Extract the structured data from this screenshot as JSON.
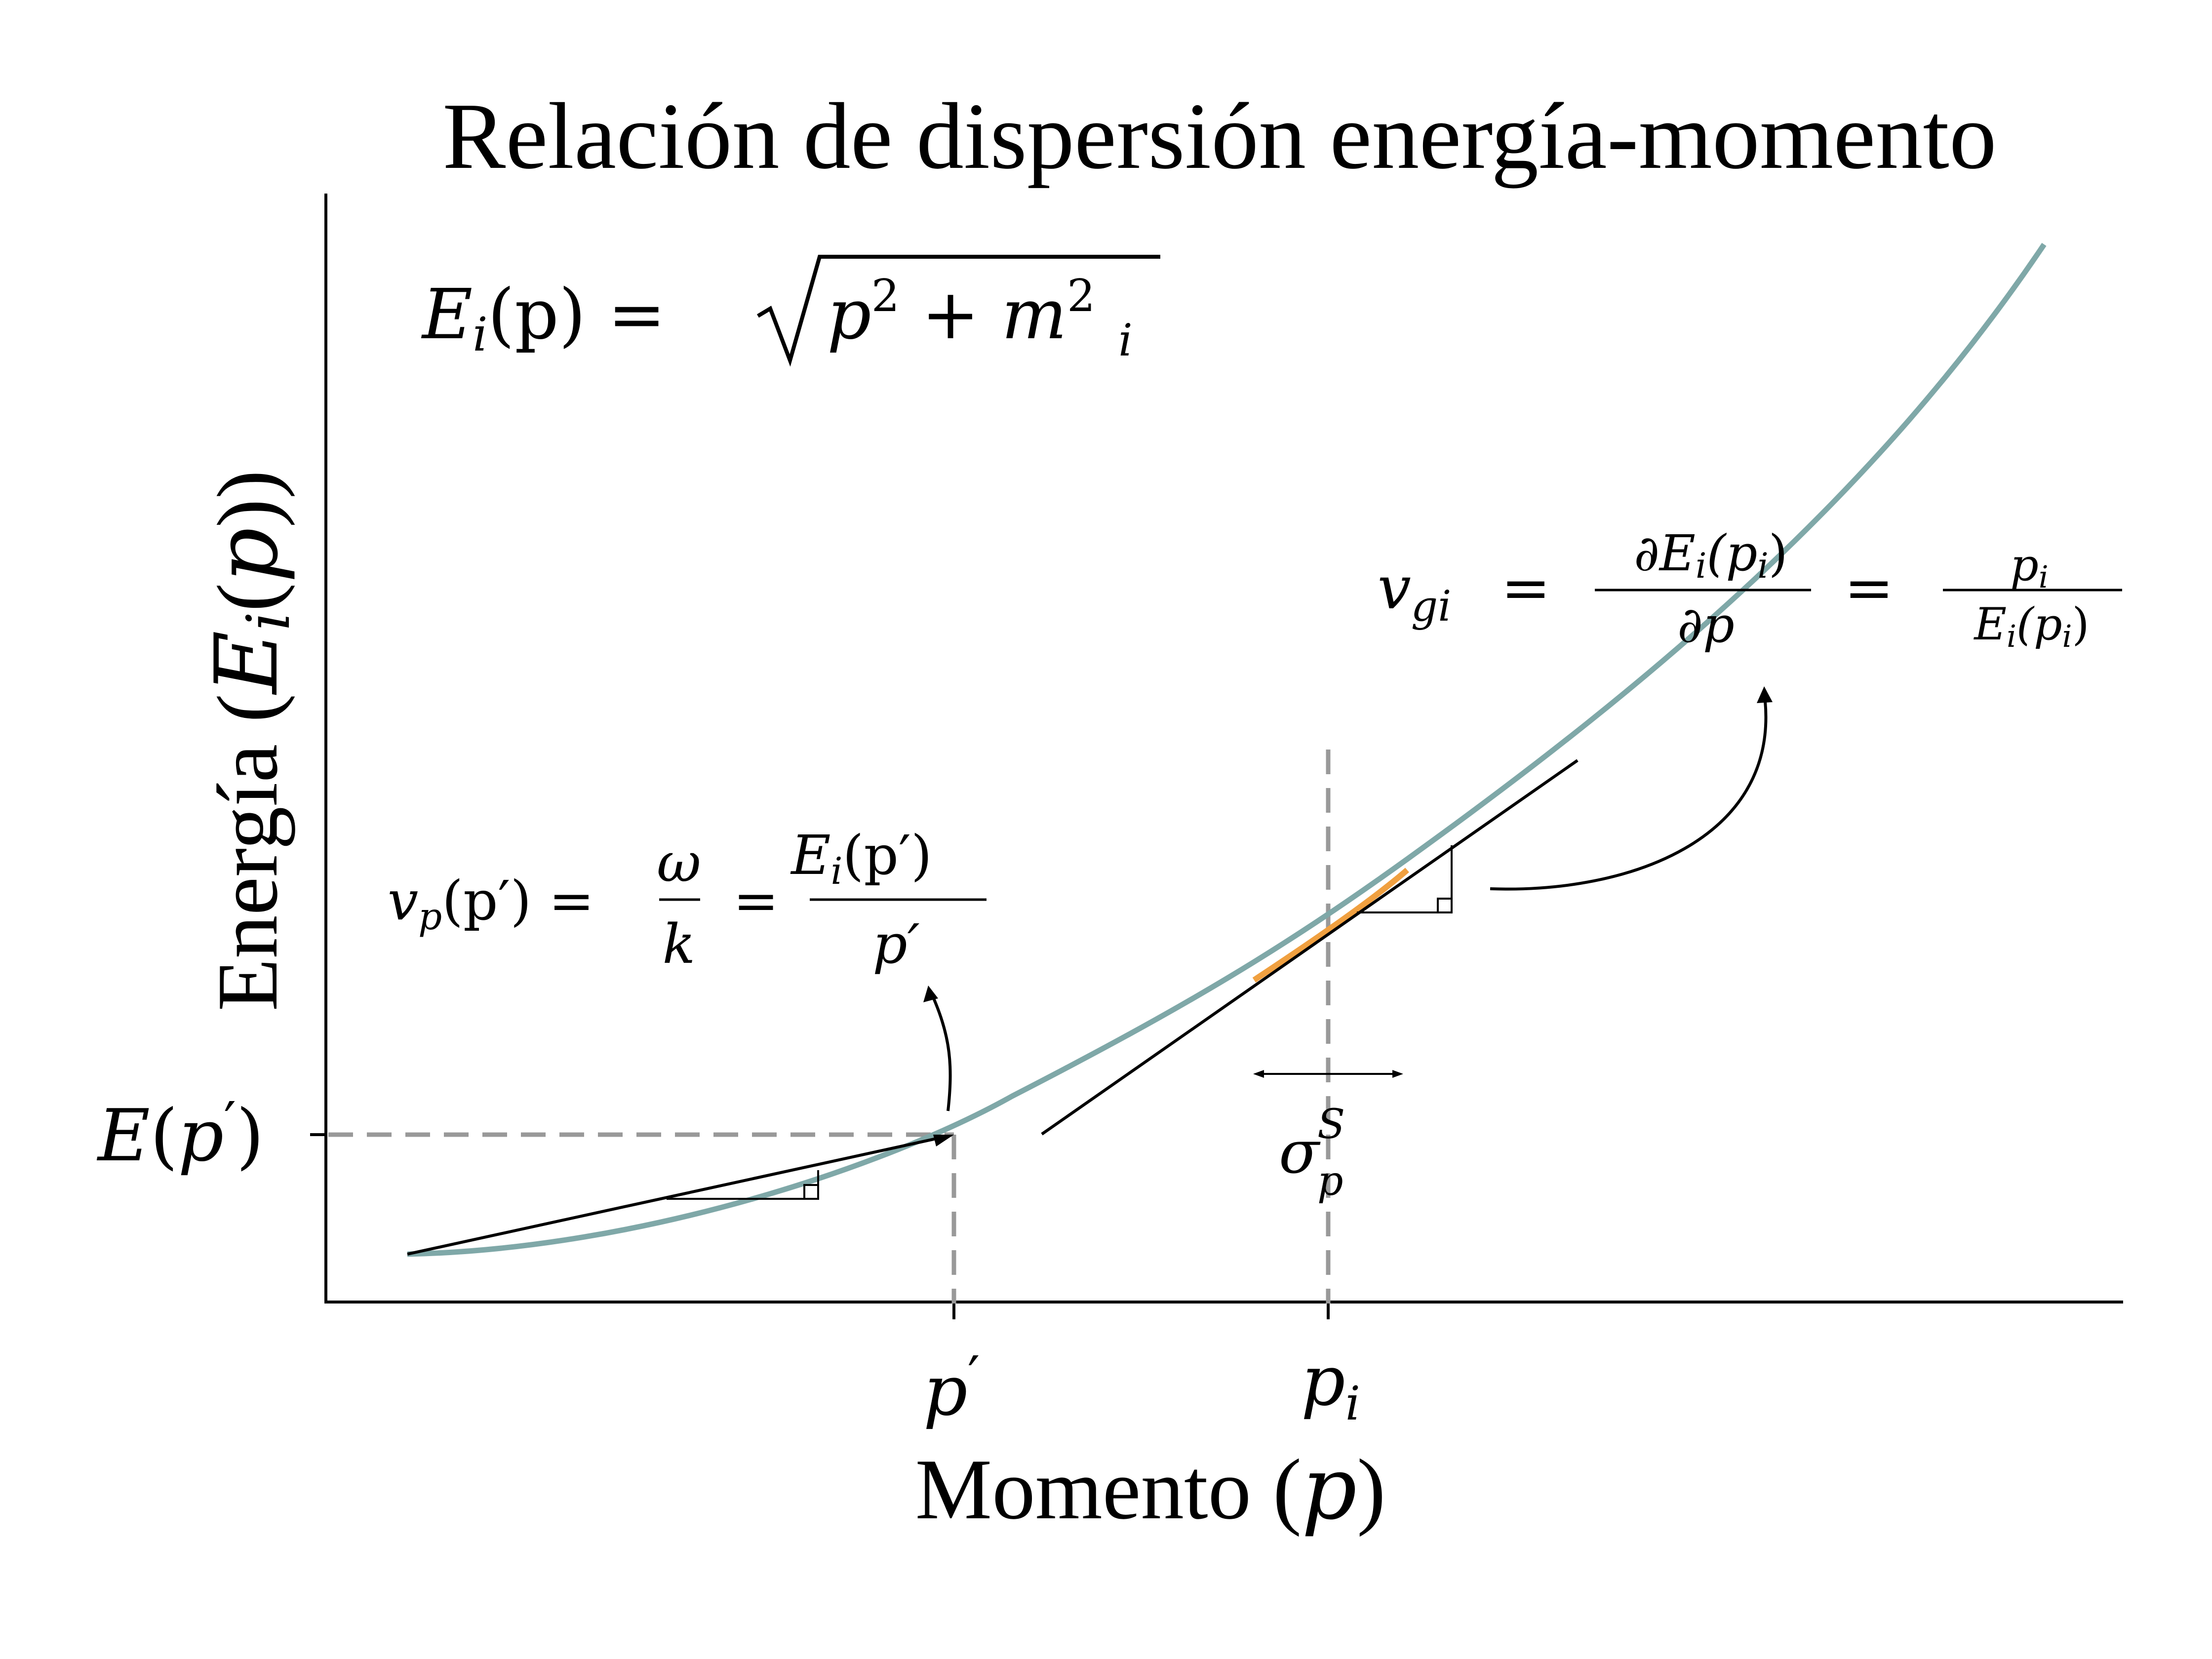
{
  "title": "Relación de dispersión energía-momento",
  "axes": {
    "xlabel_text": "Momento (",
    "xlabel_var": "p",
    "xlabel_close": ")",
    "ylabel_text": "Energía (",
    "ylabel_E": "E",
    "ylabel_i": "i",
    "ylabel_rest": "(",
    "ylabel_p": "p",
    "ylabel_close": "))",
    "xtick_pprime_var": "p",
    "xtick_pprime_mark": "′",
    "xtick_pi_var": "p",
    "xtick_pi_sub": "i",
    "ytick_E": "E",
    "ytick_open": "(",
    "ytick_p": "p",
    "ytick_mark": "′",
    "ytick_close": ")"
  },
  "annotations": {
    "dispersion": {
      "lhs_E": "E",
      "lhs_i": "i",
      "lhs_arg": "(p) =",
      "rad_p": "p",
      "rad_2a": "2",
      "rad_plus": " + ",
      "rad_m": "m",
      "rad_2b": "2",
      "rad_i": "i"
    },
    "phase_velocity": {
      "v": "v",
      "v_sub": "p",
      "arg": "(p′) =",
      "frac1_num": "ω",
      "frac1_den": "k",
      "eq": "=",
      "frac2_num_E": "E",
      "frac2_num_i": "i",
      "frac2_num_arg": "(p′)",
      "frac2_den": "p′"
    },
    "group_velocity": {
      "v": "v",
      "v_sub": "gi",
      "eq1": "=",
      "frac1_num": "∂E",
      "frac1_num_i": "i",
      "frac1_num_arg": "(p",
      "frac1_num_i2": "i",
      "frac1_num_close": ")",
      "frac1_den": "∂p",
      "eq2": "=",
      "frac2_num": "p",
      "frac2_num_i": "i",
      "frac2_den": "E",
      "frac2_den_i": "i",
      "frac2_den_arg": "(p",
      "frac2_den_i2": "i",
      "frac2_den_close": ")"
    },
    "spread": {
      "sigma": "σ",
      "sup": "S",
      "sub": "p"
    }
  },
  "colors": {
    "curve": "#7fa8a8",
    "highlight": "#f0a040",
    "axis": "#000000",
    "dashed": "#999999"
  }
}
